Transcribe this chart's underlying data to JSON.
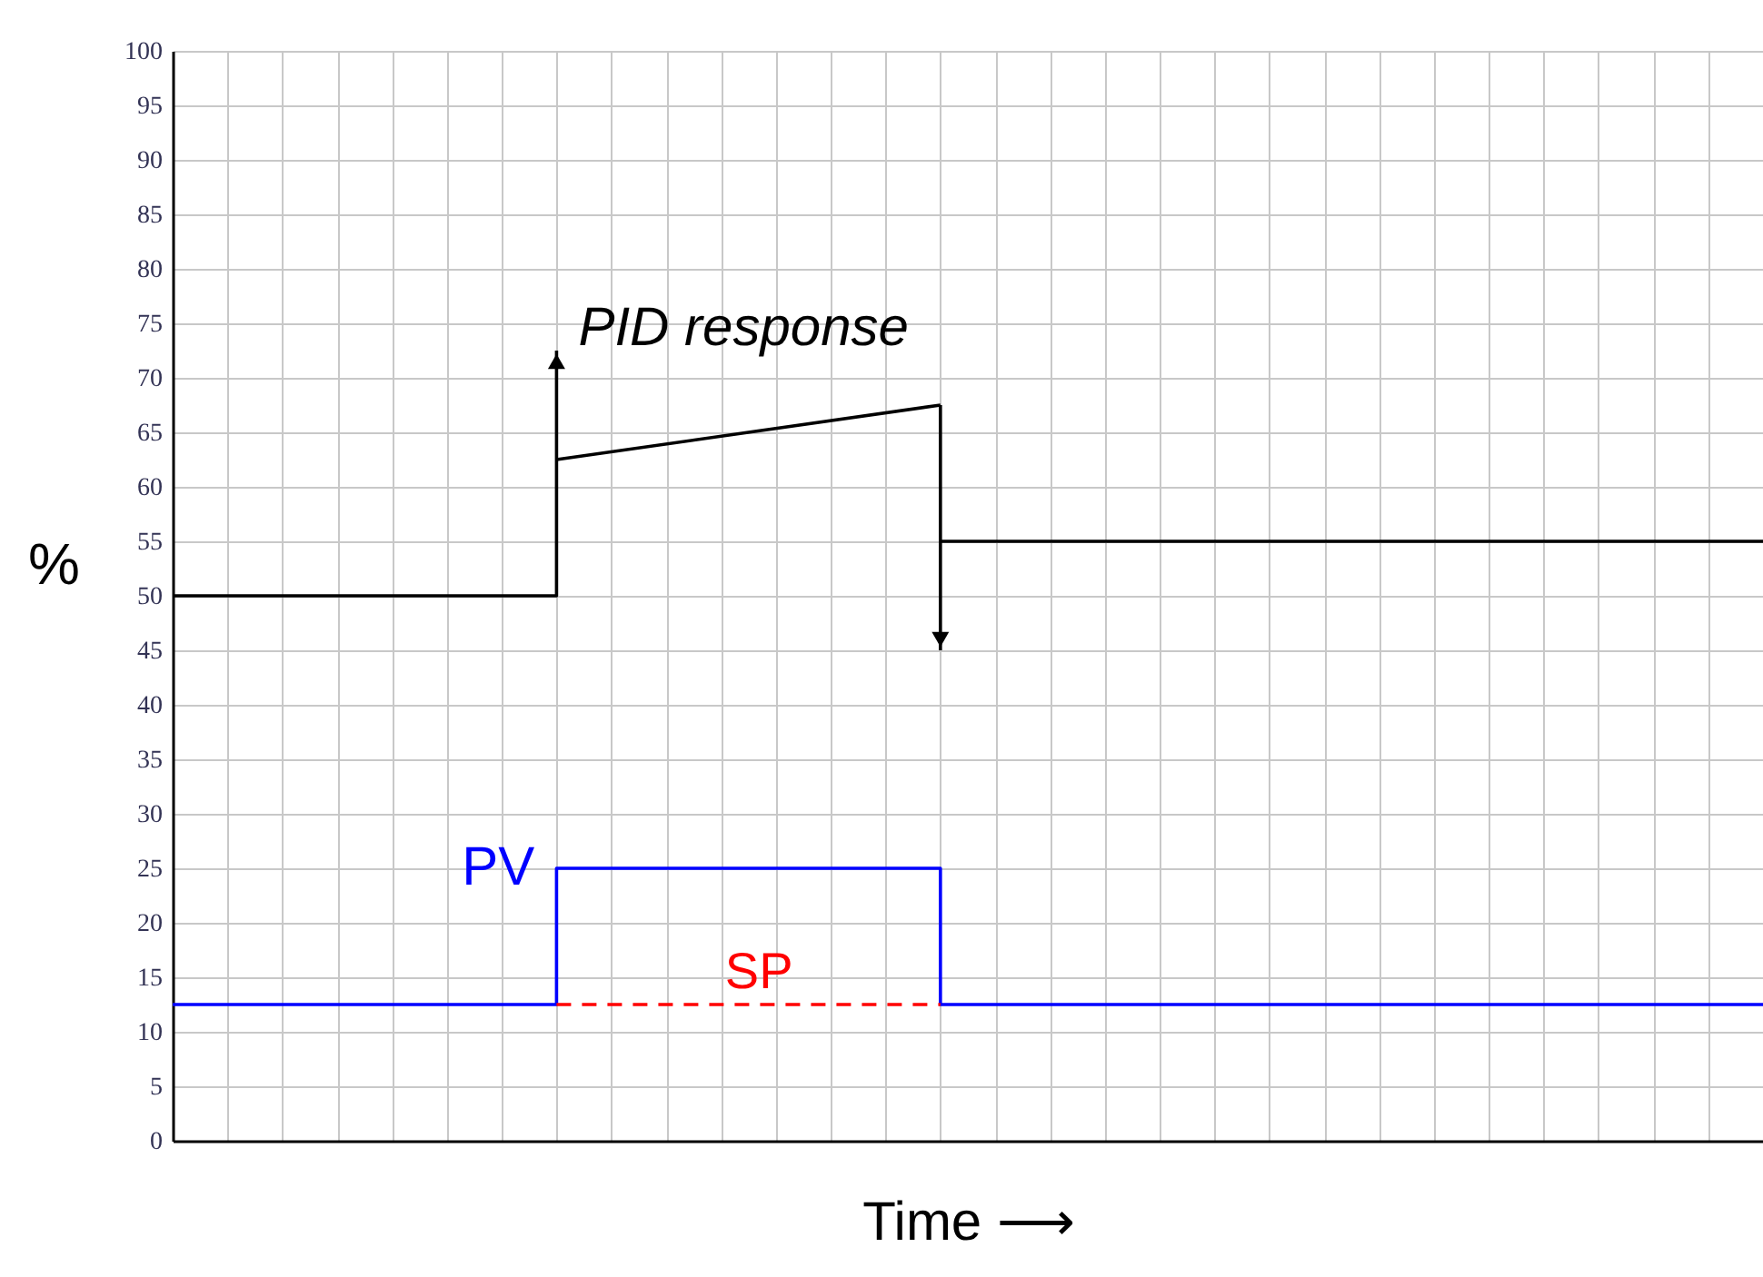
{
  "chart_data": {
    "type": "line",
    "xlabel": "Time ⟶",
    "ylabel": "%",
    "categories": [
      null,
      null,
      null,
      null,
      null,
      null,
      null,
      null,
      null,
      null,
      null,
      null,
      null,
      null,
      null,
      null,
      null,
      null,
      null,
      null,
      null,
      null,
      null,
      null,
      null,
      null,
      null,
      null,
      null,
      null
    ],
    "ylim": [
      0,
      100
    ],
    "yticks": [
      0,
      5,
      10,
      15,
      20,
      25,
      30,
      35,
      40,
      45,
      50,
      55,
      60,
      65,
      70,
      75,
      80,
      85,
      90,
      95,
      100
    ],
    "grid": true,
    "series": [
      {
        "type": "step",
        "line_style": "solid",
        "color": "#000000",
        "values": [
          50,
          50,
          50,
          50,
          50,
          50,
          50,
          62.5,
          null,
          null,
          null,
          null,
          null,
          null,
          null,
          null,
          null,
          null,
          null,
          null,
          null,
          null,
          null,
          null,
          null,
          null,
          null,
          null,
          null,
          null
        ]
      },
      {
        "line_style": "solid",
        "color": "#000000",
        "values": [
          null,
          null,
          null,
          null,
          null,
          null,
          null,
          62.5,
          null,
          null,
          null,
          null,
          null,
          null,
          67.5,
          null,
          null,
          null,
          null,
          null,
          null,
          null,
          null,
          null,
          null,
          null,
          null,
          null,
          null,
          null
        ]
      },
      {
        "line_style": "solid",
        "color": "#000000",
        "values": [
          null,
          null,
          null,
          null,
          null,
          null,
          null,
          null,
          null,
          null,
          null,
          null,
          null,
          null,
          55,
          55,
          55,
          55,
          55,
          55,
          55,
          55,
          55,
          55,
          55,
          55,
          55,
          55,
          55,
          55
        ]
      },
      {
        "name": "PV",
        "type": "step",
        "line_style": "solid",
        "color": "#0000ff",
        "values": [
          12.5,
          12.5,
          12.5,
          12.5,
          12.5,
          12.5,
          12.5,
          25,
          25,
          25,
          25,
          25,
          25,
          25,
          12.5,
          12.5,
          12.5,
          12.5,
          12.5,
          12.5,
          12.5,
          12.5,
          12.5,
          12.5,
          12.5,
          12.5,
          12.5,
          12.5,
          12.5,
          12.5
        ]
      },
      {
        "name": "SP",
        "color": "#ff0000",
        "line_style": "dashed",
        "values": [
          null,
          null,
          null,
          null,
          null,
          null,
          null,
          12.5,
          12.5,
          12.5,
          12.5,
          12.5,
          12.5,
          12.5,
          12.5,
          null,
          null,
          null,
          null,
          null,
          null,
          null,
          null,
          null,
          null,
          null,
          null,
          null,
          null,
          null
        ]
      }
    ],
    "annotations": [
      "PID response"
    ]
  }
}
